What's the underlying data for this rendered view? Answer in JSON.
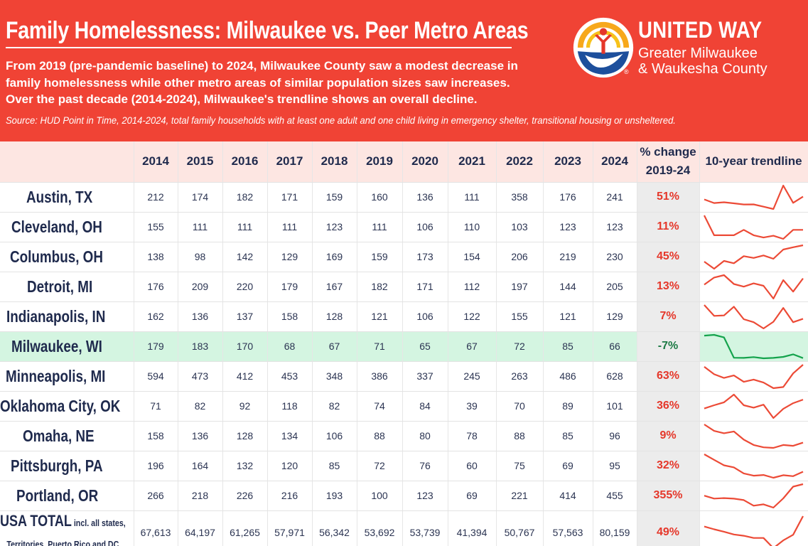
{
  "header": {
    "title": "Family Homelessness: Milwaukee vs. Peer Metro Areas",
    "subtitle_lines": [
      "From 2019 (pre-pandemic baseline) to 2024, Milwaukee County saw a modest decrease in",
      "family homelessness while other metro areas of similar population sizes saw increases.",
      "Over the past decade (2014-2024), Milwaukee's trendline shows an overall decline."
    ],
    "source": "Source: HUD Point in Time, 2014-2024, total family households with at least one adult and one child living in emergency shelter, transitional housing or unsheltered."
  },
  "brand": {
    "name": "UNITED WAY",
    "line1": "Greater Milwaukee",
    "line2": "& Waukesha County",
    "registered": "®"
  },
  "colors": {
    "header_bg": "#f04335",
    "header_row_bg": "#fde6e2",
    "trend_line": "#ec4a36",
    "milwaukee_line": "#14a34c",
    "milwaukee_row_bg": "#d4f5e1",
    "pct_col_bg": "#ececec",
    "pct_text": "#e5372a"
  },
  "chart_data": {
    "type": "table",
    "columns": [
      "2014",
      "2015",
      "2016",
      "2017",
      "2018",
      "2019",
      "2020",
      "2021",
      "2022",
      "2023",
      "2024"
    ],
    "pct_header": [
      "% change",
      "2019-24"
    ],
    "trend_header": "10-year trendline",
    "rows": [
      {
        "name": "Austin, TX",
        "values": [
          212,
          174,
          182,
          171,
          159,
          160,
          136,
          111,
          358,
          176,
          241
        ],
        "labels": [
          "212",
          "174",
          "182",
          "171",
          "159",
          "160",
          "136",
          "111",
          "358",
          "176",
          "241"
        ],
        "pct": "51%"
      },
      {
        "name": "Cleveland, OH",
        "values": [
          155,
          111,
          111,
          111,
          123,
          111,
          106,
          110,
          103,
          123,
          123
        ],
        "labels": [
          "155",
          "111",
          "111",
          "111",
          "123",
          "111",
          "106",
          "110",
          "103",
          "123",
          "123"
        ],
        "pct": "11%"
      },
      {
        "name": "Columbus, OH",
        "values": [
          138,
          98,
          142,
          129,
          169,
          159,
          173,
          154,
          206,
          219,
          230
        ],
        "labels": [
          "138",
          "98",
          "142",
          "129",
          "169",
          "159",
          "173",
          "154",
          "206",
          "219",
          "230"
        ],
        "pct": "45%"
      },
      {
        "name": "Detroit, MI",
        "values": [
          176,
          209,
          220,
          179,
          167,
          182,
          171,
          112,
          197,
          144,
          205
        ],
        "labels": [
          "176",
          "209",
          "220",
          "179",
          "167",
          "182",
          "171",
          "112",
          "197",
          "144",
          "205"
        ],
        "pct": "13%"
      },
      {
        "name": "Indianapolis, IN",
        "values": [
          162,
          136,
          137,
          158,
          128,
          121,
          106,
          122,
          155,
          121,
          129
        ],
        "labels": [
          "162",
          "136",
          "137",
          "158",
          "128",
          "121",
          "106",
          "122",
          "155",
          "121",
          "129"
        ],
        "pct": "7%"
      },
      {
        "name": "Milwaukee, WI",
        "values": [
          179,
          183,
          170,
          68,
          67,
          71,
          65,
          67,
          72,
          85,
          66
        ],
        "labels": [
          "179",
          "183",
          "170",
          "68",
          "67",
          "71",
          "65",
          "67",
          "72",
          "85",
          "66"
        ],
        "pct": "-7%",
        "highlight": true
      },
      {
        "name": "Minneapolis, MI",
        "values": [
          594,
          473,
          412,
          453,
          348,
          386,
          337,
          245,
          263,
          486,
          628
        ],
        "labels": [
          "594",
          "473",
          "412",
          "453",
          "348",
          "386",
          "337",
          "245",
          "263",
          "486",
          "628"
        ],
        "pct": "63%"
      },
      {
        "name": "Oklahoma City, OK",
        "values": [
          71,
          82,
          92,
          118,
          82,
          74,
          84,
          39,
          70,
          89,
          101
        ],
        "labels": [
          "71",
          "82",
          "92",
          "118",
          "82",
          "74",
          "84",
          "39",
          "70",
          "89",
          "101"
        ],
        "pct": "36%"
      },
      {
        "name": "Omaha, NE",
        "values": [
          158,
          136,
          128,
          134,
          106,
          88,
          80,
          78,
          88,
          85,
          96
        ],
        "labels": [
          "158",
          "136",
          "128",
          "134",
          "106",
          "88",
          "80",
          "78",
          "88",
          "85",
          "96"
        ],
        "pct": "9%"
      },
      {
        "name": "Pittsburgh, PA",
        "values": [
          196,
          164,
          132,
          120,
          85,
          72,
          76,
          60,
          75,
          69,
          95
        ],
        "labels": [
          "196",
          "164",
          "132",
          "120",
          "85",
          "72",
          "76",
          "60",
          "75",
          "69",
          "95"
        ],
        "pct": "32%"
      },
      {
        "name": "Portland, OR",
        "values": [
          266,
          218,
          226,
          216,
          193,
          100,
          123,
          69,
          221,
          414,
          455
        ],
        "labels": [
          "266",
          "218",
          "226",
          "216",
          "193",
          "100",
          "123",
          "69",
          "221",
          "414",
          "455"
        ],
        "pct": "355%"
      },
      {
        "name": "USA TOTAL",
        "name_note_1": "incl. all states,",
        "name_note_2": "Territories, Puerto Rico and DC",
        "values": [
          67613,
          64197,
          61265,
          57971,
          56342,
          53692,
          53739,
          41394,
          50767,
          57563,
          80159
        ],
        "labels": [
          "67,613",
          "64,197",
          "61,265",
          "57,971",
          "56,342",
          "53,692",
          "53,739",
          "41,394",
          "50,767",
          "57,563",
          "80,159"
        ],
        "pct": "49%",
        "usa": true
      }
    ]
  }
}
